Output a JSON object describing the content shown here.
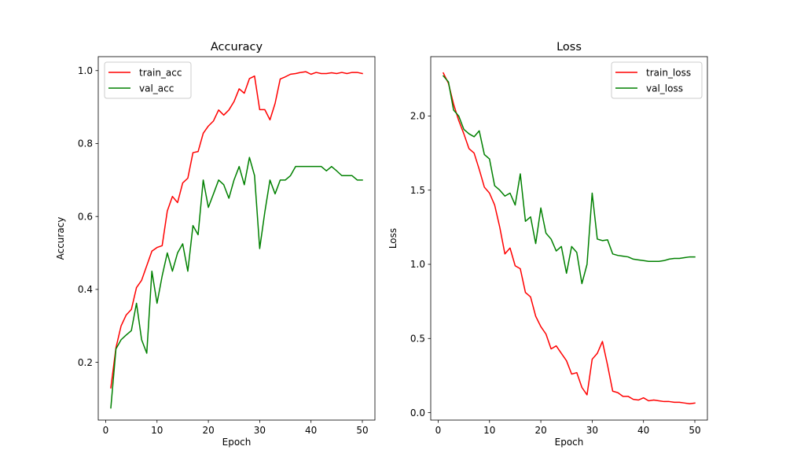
{
  "chart_data": [
    {
      "type": "line",
      "title": "Accuracy",
      "xlabel": "Epoch",
      "ylabel": "Accuracy",
      "xlim": [
        -1.45,
        52.45
      ],
      "ylim": [
        0.0417,
        1.0383
      ],
      "xticks": [
        0,
        10,
        20,
        30,
        40,
        50
      ],
      "yticks": [
        0.2,
        0.4,
        0.6,
        0.8,
        1.0
      ],
      "xtick_labels": [
        "0",
        "10",
        "20",
        "30",
        "40",
        "50"
      ],
      "ytick_labels": [
        "0.2",
        "0.4",
        "0.6",
        "0.8",
        "1.0"
      ],
      "legend_position": "upper-left",
      "grid": false,
      "x": [
        1,
        2,
        3,
        4,
        5,
        6,
        7,
        8,
        9,
        10,
        11,
        12,
        13,
        14,
        15,
        16,
        17,
        18,
        19,
        20,
        21,
        22,
        23,
        24,
        25,
        26,
        27,
        28,
        29,
        30,
        31,
        32,
        33,
        34,
        35,
        36,
        37,
        38,
        39,
        40,
        41,
        42,
        43,
        44,
        45,
        46,
        47,
        48,
        49,
        50
      ],
      "series": [
        {
          "name": "train_acc",
          "color": "#ff0000",
          "values": [
            0.13,
            0.24,
            0.3,
            0.33,
            0.345,
            0.405,
            0.425,
            0.465,
            0.505,
            0.515,
            0.52,
            0.615,
            0.655,
            0.638,
            0.692,
            0.705,
            0.775,
            0.778,
            0.828,
            0.848,
            0.862,
            0.892,
            0.878,
            0.892,
            0.915,
            0.95,
            0.938,
            0.978,
            0.985,
            0.893,
            0.893,
            0.865,
            0.91,
            0.977,
            0.983,
            0.99,
            0.992,
            0.995,
            0.997,
            0.99,
            0.995,
            0.992,
            0.992,
            0.994,
            0.992,
            0.995,
            0.992,
            0.995,
            0.995,
            0.992
          ]
        },
        {
          "name": "val_acc",
          "color": "#008000",
          "values": [
            0.075,
            0.237,
            0.262,
            0.275,
            0.287,
            0.362,
            0.262,
            0.225,
            0.45,
            0.362,
            0.437,
            0.5,
            0.45,
            0.5,
            0.525,
            0.45,
            0.575,
            0.55,
            0.7,
            0.625,
            0.662,
            0.7,
            0.687,
            0.65,
            0.7,
            0.737,
            0.687,
            0.762,
            0.712,
            0.512,
            0.612,
            0.7,
            0.662,
            0.7,
            0.7,
            0.712,
            0.737,
            0.737,
            0.737,
            0.737,
            0.737,
            0.737,
            0.725,
            0.737,
            0.725,
            0.712,
            0.712,
            0.712,
            0.7,
            0.7
          ]
        }
      ]
    },
    {
      "type": "line",
      "title": "Loss",
      "xlabel": "Epoch",
      "ylabel": "Loss",
      "xlim": [
        -1.45,
        52.45
      ],
      "ylim": [
        -0.05,
        2.4
      ],
      "xticks": [
        0,
        10,
        20,
        30,
        40,
        50
      ],
      "yticks": [
        0.0,
        0.5,
        1.0,
        1.5,
        2.0
      ],
      "xtick_labels": [
        "0",
        "10",
        "20",
        "30",
        "40",
        "50"
      ],
      "ytick_labels": [
        "0.0",
        "0.5",
        "1.0",
        "1.5",
        "2.0"
      ],
      "legend_position": "upper-right",
      "grid": false,
      "x": [
        1,
        2,
        3,
        4,
        5,
        6,
        7,
        8,
        9,
        10,
        11,
        12,
        13,
        14,
        15,
        16,
        17,
        18,
        19,
        20,
        21,
        22,
        23,
        24,
        25,
        26,
        27,
        28,
        29,
        30,
        31,
        32,
        33,
        34,
        35,
        36,
        37,
        38,
        39,
        40,
        41,
        42,
        43,
        44,
        45,
        46,
        47,
        48,
        49,
        50
      ],
      "series": [
        {
          "name": "train_loss",
          "color": "#ff0000",
          "values": [
            2.29,
            2.22,
            2.08,
            1.97,
            1.88,
            1.78,
            1.75,
            1.64,
            1.52,
            1.48,
            1.4,
            1.25,
            1.07,
            1.11,
            0.99,
            0.97,
            0.81,
            0.78,
            0.65,
            0.58,
            0.53,
            0.43,
            0.45,
            0.4,
            0.35,
            0.26,
            0.27,
            0.17,
            0.12,
            0.36,
            0.4,
            0.48,
            0.32,
            0.145,
            0.135,
            0.11,
            0.11,
            0.09,
            0.085,
            0.1,
            0.08,
            0.085,
            0.08,
            0.075,
            0.075,
            0.07,
            0.07,
            0.065,
            0.06,
            0.065
          ]
        },
        {
          "name": "val_loss",
          "color": "#008000",
          "values": [
            2.27,
            2.23,
            2.04,
            2.0,
            1.91,
            1.88,
            1.86,
            1.9,
            1.74,
            1.71,
            1.53,
            1.5,
            1.46,
            1.48,
            1.4,
            1.61,
            1.29,
            1.32,
            1.14,
            1.38,
            1.21,
            1.17,
            1.09,
            1.12,
            0.94,
            1.12,
            1.08,
            0.87,
            1.0,
            1.48,
            1.17,
            1.16,
            1.165,
            1.07,
            1.06,
            1.055,
            1.05,
            1.035,
            1.03,
            1.025,
            1.02,
            1.02,
            1.02,
            1.025,
            1.035,
            1.04,
            1.04,
            1.045,
            1.05,
            1.05
          ]
        }
      ]
    }
  ]
}
